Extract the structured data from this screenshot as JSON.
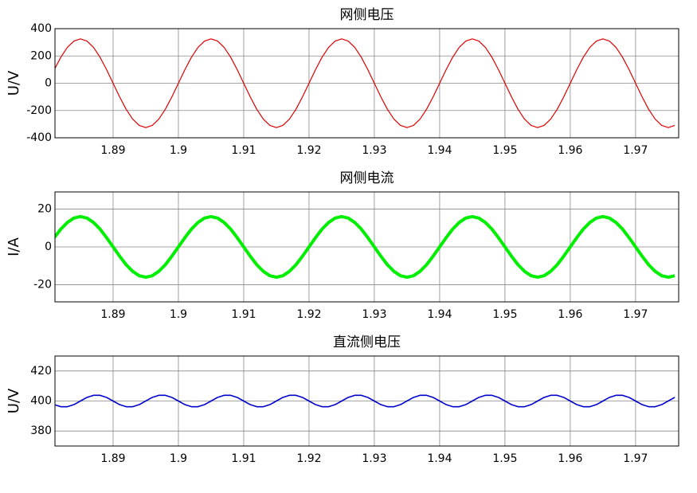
{
  "chart_data": [
    {
      "type": "line",
      "title": "网侧电压",
      "ylabel": "U/V",
      "color": "#dd0000",
      "grid": true,
      "xlim": [
        1.8811,
        1.9766
      ],
      "xticks": [
        1.89,
        1.9,
        1.91,
        1.92,
        1.93,
        1.94,
        1.95,
        1.96,
        1.97
      ],
      "ylim": [
        -400,
        400
      ],
      "yticks": [
        -400,
        -200,
        0,
        200,
        400
      ],
      "x": [
        1.881,
        1.882,
        1.883,
        1.884,
        1.885,
        1.886,
        1.887,
        1.888,
        1.889,
        1.89,
        1.891,
        1.892,
        1.893,
        1.894,
        1.895,
        1.896,
        1.897,
        1.898,
        1.899,
        1.9,
        1.901,
        1.902,
        1.903,
        1.904,
        1.905,
        1.906,
        1.907,
        1.908,
        1.909,
        1.91,
        1.911,
        1.912,
        1.913,
        1.914,
        1.915,
        1.916,
        1.917,
        1.918,
        1.919,
        1.92,
        1.921,
        1.922,
        1.923,
        1.924,
        1.925,
        1.926,
        1.927,
        1.928,
        1.929,
        1.93,
        1.931,
        1.932,
        1.933,
        1.934,
        1.935,
        1.936,
        1.937,
        1.938,
        1.939,
        1.94,
        1.941,
        1.942,
        1.943,
        1.944,
        1.945,
        1.946,
        1.947,
        1.948,
        1.949,
        1.95,
        1.951,
        1.952,
        1.953,
        1.954,
        1.955,
        1.956,
        1.957,
        1.958,
        1.959,
        1.96,
        1.961,
        1.962,
        1.963,
        1.964,
        1.965,
        1.966,
        1.967,
        1.968,
        1.969,
        1.97,
        1.971,
        1.972,
        1.973,
        1.974,
        1.975,
        1.976
      ],
      "values": [
        100,
        191,
        263,
        309,
        325,
        309,
        263,
        191,
        100,
        0,
        -100,
        -191,
        -263,
        -309,
        -325,
        -309,
        -263,
        -191,
        -100,
        0,
        100,
        191,
        263,
        309,
        325,
        309,
        263,
        191,
        100,
        0,
        -100,
        -191,
        -263,
        -309,
        -325,
        -309,
        -263,
        -191,
        -100,
        0,
        100,
        191,
        263,
        309,
        325,
        309,
        263,
        191,
        100,
        0,
        -100,
        -191,
        -263,
        -309,
        -325,
        -309,
        -263,
        -191,
        -100,
        0,
        100,
        191,
        263,
        309,
        325,
        309,
        263,
        191,
        100,
        0,
        -100,
        -191,
        -263,
        -309,
        -325,
        -309,
        -263,
        -191,
        -100,
        0,
        100,
        191,
        263,
        309,
        325,
        309,
        263,
        191,
        100,
        0,
        -100,
        -191,
        -263,
        -309,
        -325,
        -309
      ]
    },
    {
      "type": "line",
      "title": "网侧电流",
      "ylabel": "I/A",
      "color": "#00ee00",
      "grid": true,
      "xlim": [
        1.8811,
        1.9766
      ],
      "xticks": [
        1.89,
        1.9,
        1.91,
        1.92,
        1.93,
        1.94,
        1.95,
        1.96,
        1.97
      ],
      "ylim": [
        -29,
        29
      ],
      "yticks": [
        -20,
        0,
        20
      ],
      "x": [
        1.881,
        1.882,
        1.883,
        1.884,
        1.885,
        1.886,
        1.887,
        1.888,
        1.889,
        1.89,
        1.891,
        1.892,
        1.893,
        1.894,
        1.895,
        1.896,
        1.897,
        1.898,
        1.899,
        1.9,
        1.901,
        1.902,
        1.903,
        1.904,
        1.905,
        1.906,
        1.907,
        1.908,
        1.909,
        1.91,
        1.911,
        1.912,
        1.913,
        1.914,
        1.915,
        1.916,
        1.917,
        1.918,
        1.919,
        1.92,
        1.921,
        1.922,
        1.923,
        1.924,
        1.925,
        1.926,
        1.927,
        1.928,
        1.929,
        1.93,
        1.931,
        1.932,
        1.933,
        1.934,
        1.935,
        1.936,
        1.937,
        1.938,
        1.939,
        1.94,
        1.941,
        1.942,
        1.943,
        1.944,
        1.945,
        1.946,
        1.947,
        1.948,
        1.949,
        1.95,
        1.951,
        1.952,
        1.953,
        1.954,
        1.955,
        1.956,
        1.957,
        1.958,
        1.959,
        1.96,
        1.961,
        1.962,
        1.963,
        1.964,
        1.965,
        1.966,
        1.967,
        1.968,
        1.969,
        1.97,
        1.971,
        1.972,
        1.973,
        1.974,
        1.975,
        1.976
      ],
      "values": [
        4.9,
        9.4,
        12.9,
        15.2,
        16,
        15.2,
        12.9,
        9.4,
        4.9,
        0,
        -4.9,
        -9.4,
        -12.9,
        -15.2,
        -16,
        -15.2,
        -12.9,
        -9.4,
        -4.9,
        0,
        4.9,
        9.4,
        12.9,
        15.2,
        16,
        15.2,
        12.9,
        9.4,
        4.9,
        0,
        -4.9,
        -9.4,
        -12.9,
        -15.2,
        -16,
        -15.2,
        -12.9,
        -9.4,
        -4.9,
        0,
        4.9,
        9.4,
        12.9,
        15.2,
        16,
        15.2,
        12.9,
        9.4,
        4.9,
        0,
        -4.9,
        -9.4,
        -12.9,
        -15.2,
        -16,
        -15.2,
        -12.9,
        -9.4,
        -4.9,
        0,
        4.9,
        9.4,
        12.9,
        15.2,
        16,
        15.2,
        12.9,
        9.4,
        4.9,
        0,
        -4.9,
        -9.4,
        -12.9,
        -15.2,
        -16,
        -15.2,
        -12.9,
        -9.4,
        -4.9,
        0,
        4.9,
        9.4,
        12.9,
        15.2,
        16,
        15.2,
        12.9,
        9.4,
        4.9,
        0,
        -4.9,
        -9.4,
        -12.9,
        -15.2,
        -16,
        -15.2
      ]
    },
    {
      "type": "line",
      "title": "直流侧电压",
      "ylabel": "U/V",
      "color": "#0000cc",
      "grid": true,
      "xlim": [
        1.8811,
        1.9766
      ],
      "xticks": [
        1.89,
        1.9,
        1.91,
        1.92,
        1.93,
        1.94,
        1.95,
        1.96,
        1.97
      ],
      "ylim": [
        370,
        430
      ],
      "yticks": [
        380,
        400,
        420
      ],
      "x": [
        1.881,
        1.882,
        1.883,
        1.884,
        1.885,
        1.886,
        1.887,
        1.888,
        1.889,
        1.89,
        1.891,
        1.892,
        1.893,
        1.894,
        1.895,
        1.896,
        1.897,
        1.898,
        1.899,
        1.9,
        1.901,
        1.902,
        1.903,
        1.904,
        1.905,
        1.906,
        1.907,
        1.908,
        1.909,
        1.91,
        1.911,
        1.912,
        1.913,
        1.914,
        1.915,
        1.916,
        1.917,
        1.918,
        1.919,
        1.92,
        1.921,
        1.922,
        1.923,
        1.924,
        1.925,
        1.926,
        1.927,
        1.928,
        1.929,
        1.93,
        1.931,
        1.932,
        1.933,
        1.934,
        1.935,
        1.936,
        1.937,
        1.938,
        1.939,
        1.94,
        1.941,
        1.942,
        1.943,
        1.944,
        1.945,
        1.946,
        1.947,
        1.948,
        1.949,
        1.95,
        1.951,
        1.952,
        1.953,
        1.954,
        1.955,
        1.956,
        1.957,
        1.958,
        1.959,
        1.96,
        1.961,
        1.962,
        1.963,
        1.964,
        1.965,
        1.966,
        1.967,
        1.968,
        1.969,
        1.97,
        1.971,
        1.972,
        1.973,
        1.974,
        1.975,
        1.976
      ],
      "values": [
        397.6,
        396.2,
        396.2,
        397.6,
        400,
        402.4,
        403.8,
        403.8,
        402.4,
        400,
        397.6,
        396.2,
        396.2,
        397.6,
        400,
        402.4,
        403.8,
        403.8,
        402.4,
        400,
        397.6,
        396.2,
        396.2,
        397.6,
        400,
        402.4,
        403.8,
        403.8,
        402.4,
        400,
        397.6,
        396.2,
        396.2,
        397.6,
        400,
        402.4,
        403.8,
        403.8,
        402.4,
        400,
        397.6,
        396.2,
        396.2,
        397.6,
        400,
        402.4,
        403.8,
        403.8,
        402.4,
        400,
        397.6,
        396.2,
        396.2,
        397.6,
        400,
        402.4,
        403.8,
        403.8,
        402.4,
        400,
        397.6,
        396.2,
        396.2,
        397.6,
        400,
        402.4,
        403.8,
        403.8,
        402.4,
        400,
        397.6,
        396.2,
        396.2,
        397.6,
        400,
        402.4,
        403.8,
        403.8,
        402.4,
        400,
        397.6,
        396.2,
        396.2,
        397.6,
        400,
        402.4,
        403.8,
        403.8,
        402.4,
        400,
        397.6,
        396.2,
        396.2,
        397.6,
        400,
        402.4
      ]
    }
  ]
}
